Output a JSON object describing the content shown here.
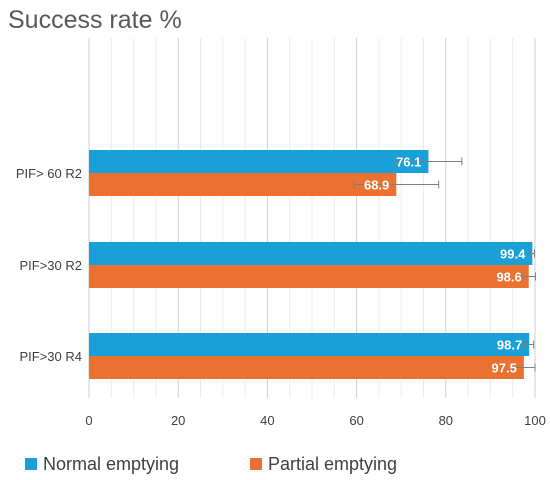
{
  "chart_data": {
    "type": "bar",
    "orientation": "horizontal",
    "title": "Success rate %",
    "xlabel": "",
    "ylabel": "",
    "xlim": [
      0,
      100
    ],
    "x_ticks": [
      0,
      20,
      40,
      60,
      80,
      100
    ],
    "grid": true,
    "legend_position": "bottom",
    "categories": [
      "PIF> 60 R2",
      "PIF>30 R2",
      "PIF>30 R4"
    ],
    "series": [
      {
        "name": "Normal emptying",
        "color": "#1AA0D8",
        "values": [
          76.1,
          99.4,
          98.7
        ],
        "error": [
          7.5,
          0.5,
          1.0
        ]
      },
      {
        "name": "Partial emptying",
        "color": "#EA7130",
        "values": [
          68.9,
          98.6,
          97.5
        ],
        "error": [
          9.5,
          1.5,
          2.5
        ]
      }
    ]
  }
}
